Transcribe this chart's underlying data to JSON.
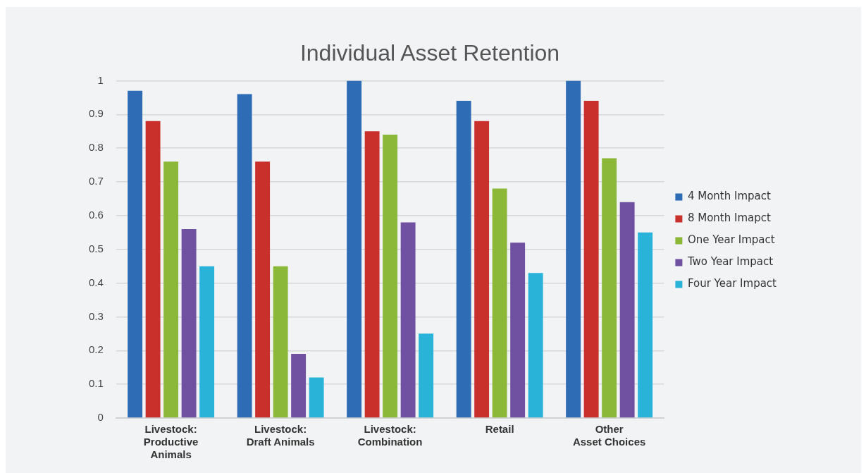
{
  "chart_data": {
    "type": "bar",
    "title": "Individual Asset Retention",
    "categories": [
      "Livestock:\nProductive\nAnimals",
      "Livestock:\nDraft Animals",
      "Livestock:\nCombination",
      "Retail",
      "Other\nAsset Choices"
    ],
    "series": [
      {
        "name": "4 Month Impact",
        "color": "#2e6db5",
        "values": [
          0.97,
          0.96,
          1.0,
          0.94,
          1.0
        ]
      },
      {
        "name": "8 Month Imapct",
        "color": "#c9302c",
        "values": [
          0.88,
          0.76,
          0.85,
          0.88,
          0.94
        ]
      },
      {
        "name": "One Year Impact",
        "color": "#8cb83a",
        "values": [
          0.76,
          0.45,
          0.84,
          0.68,
          0.77
        ]
      },
      {
        "name": "Two Year Impact",
        "color": "#7050a0",
        "values": [
          0.56,
          0.19,
          0.58,
          0.52,
          0.64
        ]
      },
      {
        "name": "Four Year Impact",
        "color": "#2ab3d8",
        "values": [
          0.45,
          0.12,
          0.25,
          0.43,
          0.55
        ]
      }
    ],
    "ylim": [
      0,
      1
    ],
    "yticks": [
      0,
      0.1,
      0.2,
      0.3,
      0.4,
      0.5,
      0.6,
      0.7,
      0.8,
      0.9,
      1
    ],
    "grid": "y",
    "legend": "right"
  }
}
